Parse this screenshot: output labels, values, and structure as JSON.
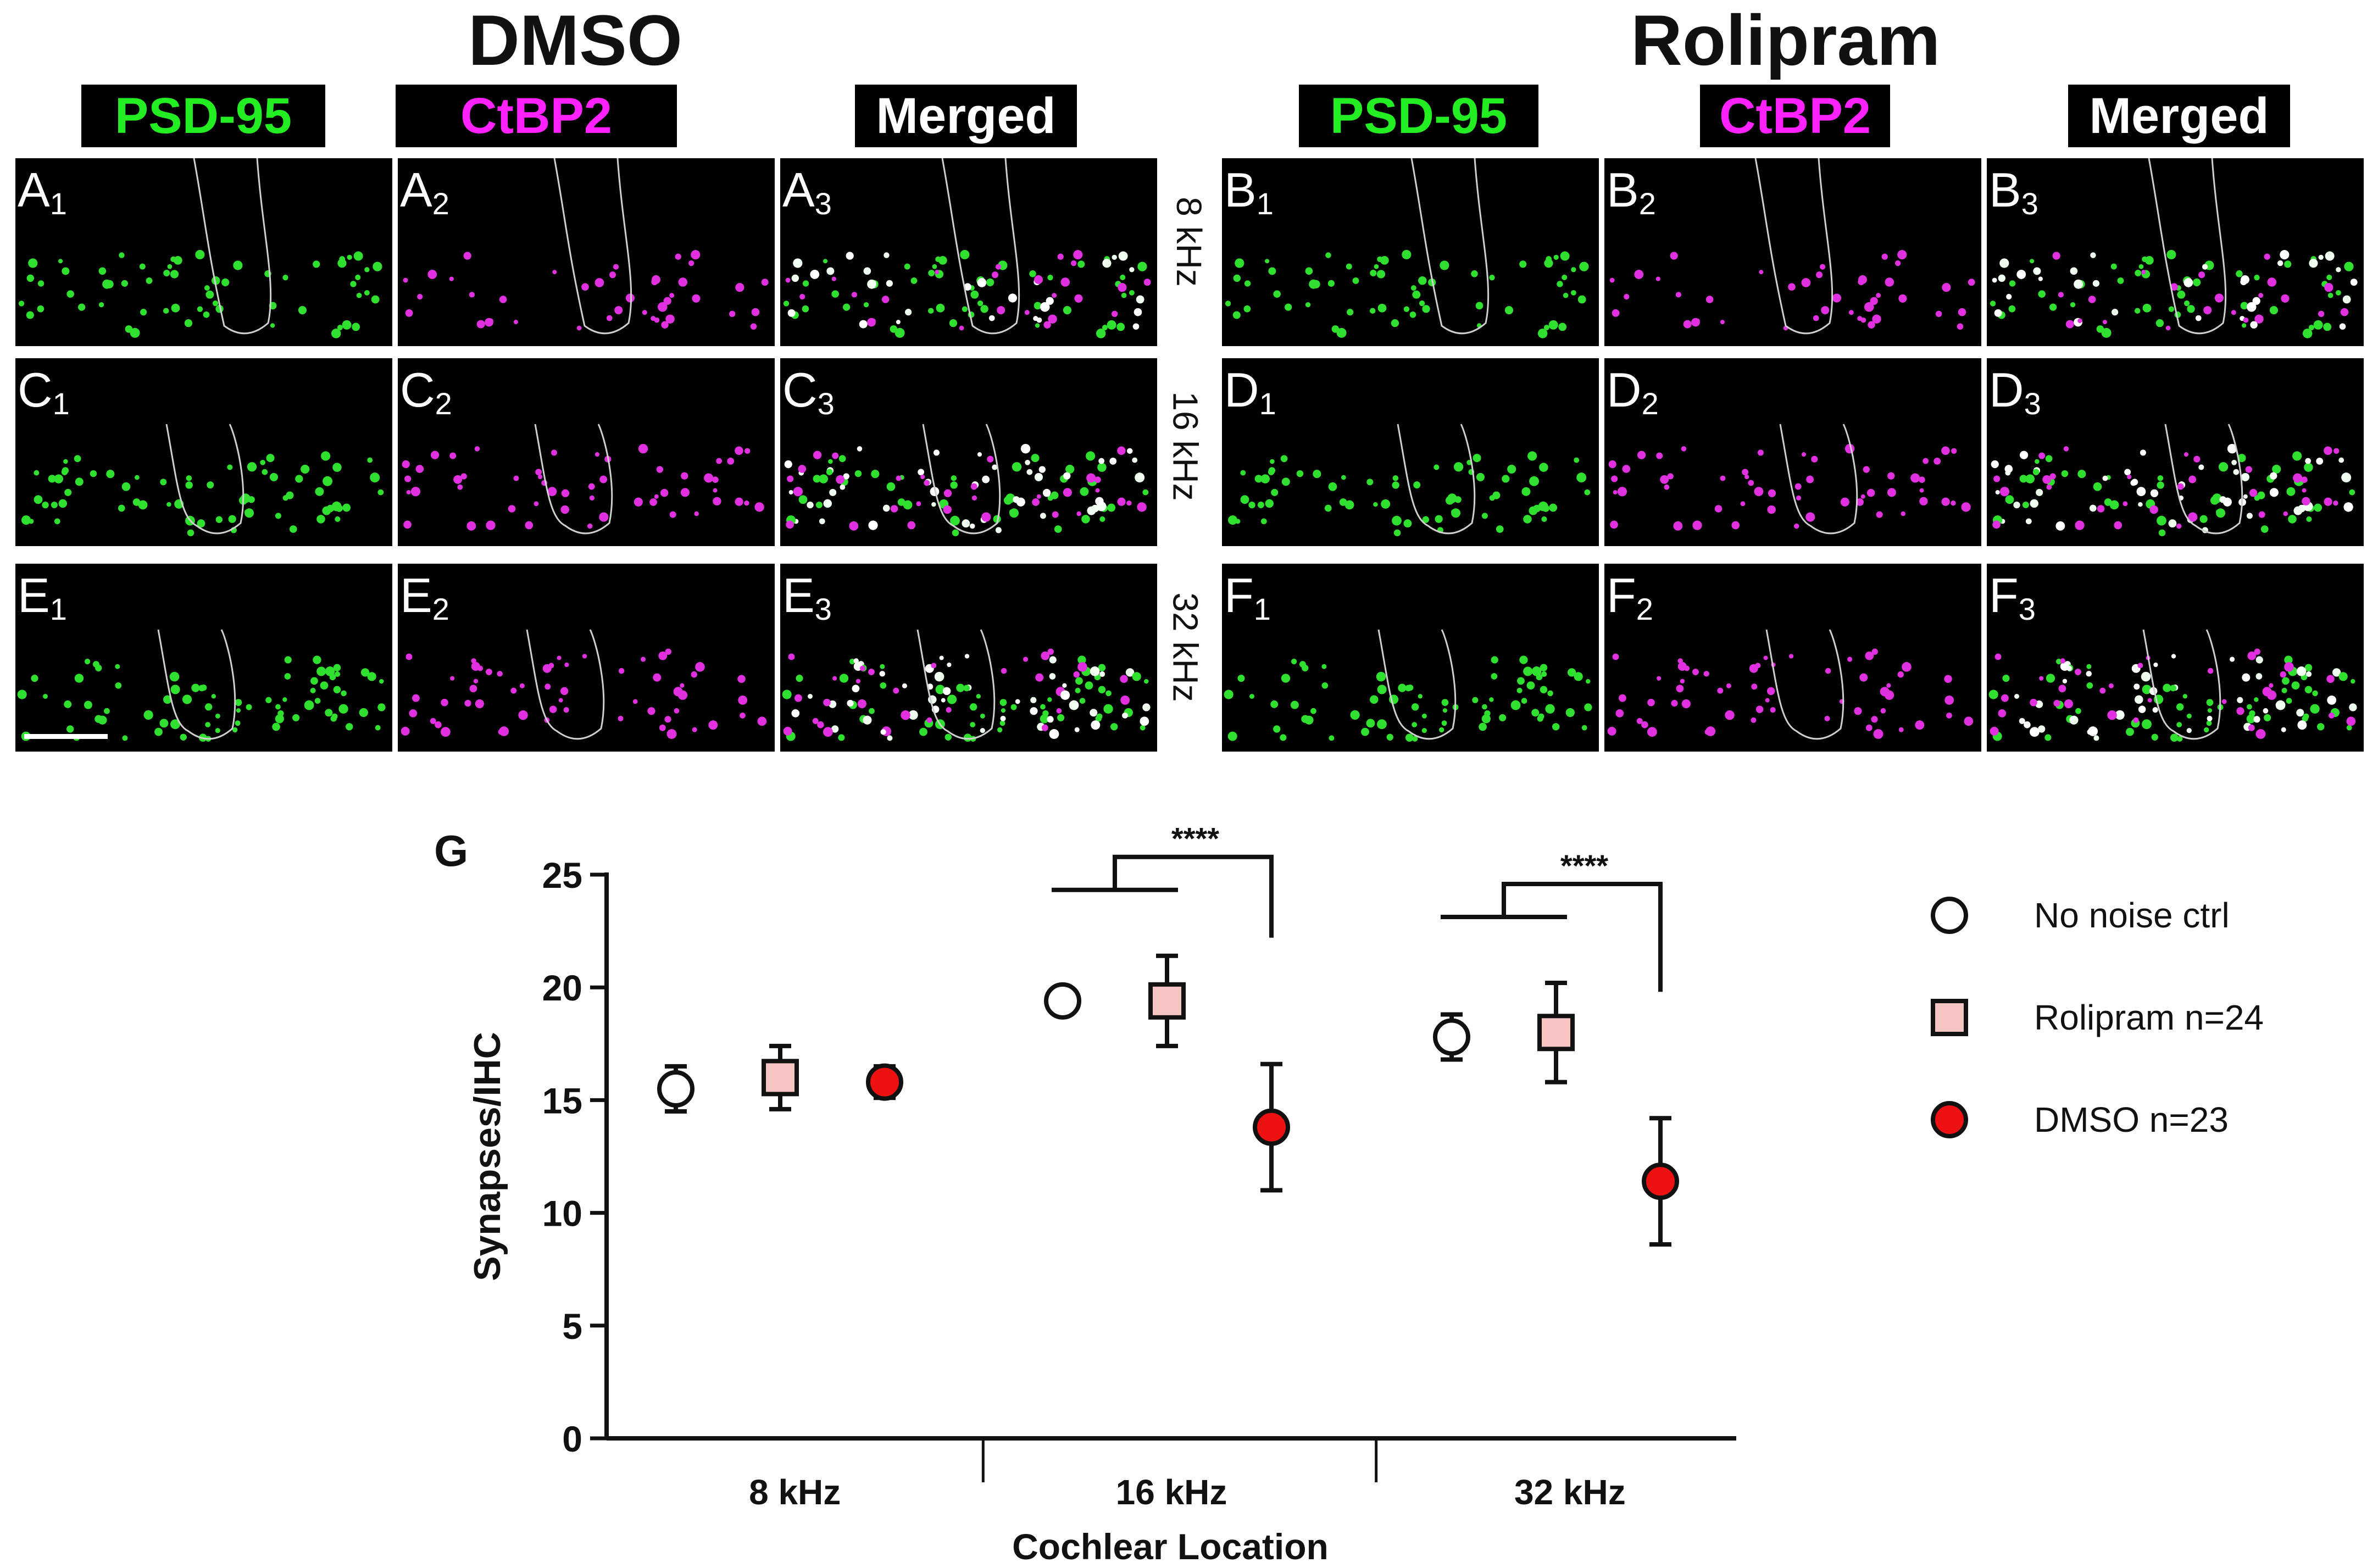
{
  "titles": {
    "left": "DMSO",
    "right": "Rolipram"
  },
  "channels": [
    {
      "label": "PSD-95",
      "color": "#22ee22"
    },
    {
      "label": "CtBP2",
      "color": "#ff22ff"
    },
    {
      "label": "Merged",
      "color": "#ffffff"
    }
  ],
  "frequency_rows": [
    "8 kHz",
    "16 kHz",
    "32 kHz"
  ],
  "panels": {
    "row1": [
      {
        "letter": "A",
        "sub": "1"
      },
      {
        "letter": "A",
        "sub": "2"
      },
      {
        "letter": "A",
        "sub": "3"
      },
      {
        "letter": "B",
        "sub": "1"
      },
      {
        "letter": "B",
        "sub": "2"
      },
      {
        "letter": "B",
        "sub": "3"
      }
    ],
    "row2": [
      {
        "letter": "C",
        "sub": "1"
      },
      {
        "letter": "C",
        "sub": "2"
      },
      {
        "letter": "C",
        "sub": "3"
      },
      {
        "letter": "D",
        "sub": "1"
      },
      {
        "letter": "D",
        "sub": "2"
      },
      {
        "letter": "D",
        "sub": "3"
      }
    ],
    "row3": [
      {
        "letter": "E",
        "sub": "1"
      },
      {
        "letter": "E",
        "sub": "2"
      },
      {
        "letter": "E",
        "sub": "3"
      },
      {
        "letter": "F",
        "sub": "1"
      },
      {
        "letter": "F",
        "sub": "2"
      },
      {
        "letter": "F",
        "sub": "3"
      }
    ]
  },
  "chart_data": {
    "type": "scatter",
    "panel_label": "G",
    "ylabel": "Synapses/IHC",
    "xlabel": "Cochlear Location",
    "categories": [
      "8 kHz",
      "16 kHz",
      "32 kHz"
    ],
    "ylim": [
      0,
      25
    ],
    "yticks": [
      0,
      5,
      10,
      15,
      20,
      25
    ],
    "series": [
      {
        "name": "No noise ctrl",
        "marker": "circle",
        "fill": "#ffffff",
        "values": [
          15.5,
          19.4,
          17.8
        ],
        "err": [
          1.0,
          0.0,
          1.0
        ]
      },
      {
        "name": "Rolipram n=24",
        "marker": "square",
        "fill": "#f6c4c2",
        "values": [
          16.0,
          19.4,
          18.0
        ],
        "err": [
          1.4,
          2.0,
          2.2
        ]
      },
      {
        "name": "DMSO n=23",
        "marker": "circle",
        "fill": "#ee1111",
        "values": [
          15.8,
          13.8,
          11.4
        ],
        "err": [
          0.7,
          2.8,
          2.8
        ]
      }
    ],
    "significance": [
      {
        "category": "16 kHz",
        "label": "****"
      },
      {
        "category": "32 kHz",
        "label": "****"
      }
    ],
    "legend_position": "right"
  }
}
